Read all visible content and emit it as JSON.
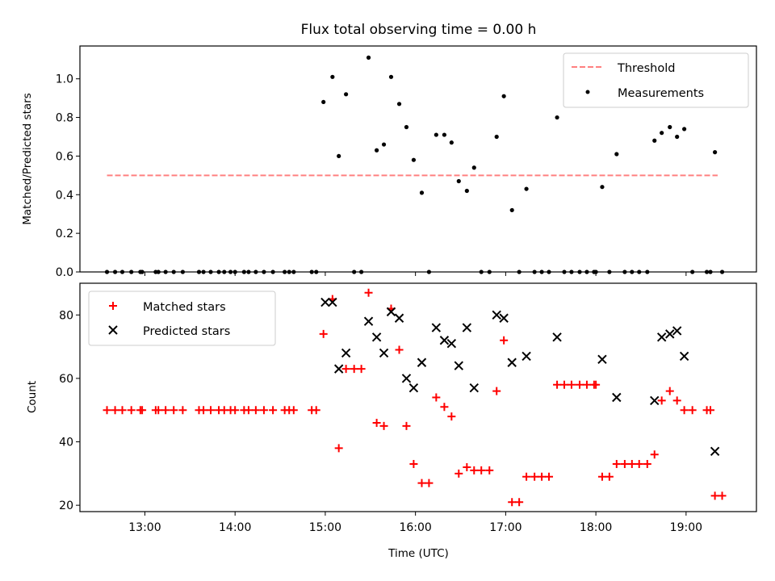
{
  "chart_data": [
    {
      "type": "scatter",
      "title": "Flux total observing time = 0.00 h",
      "xlabel": "",
      "ylabel": "Matched/Predicted stars",
      "ylim": [
        0,
        1.17
      ],
      "yticks": [
        0.0,
        0.2,
        0.4,
        0.6,
        0.8,
        1.0
      ],
      "ytick_labels": [
        "0.0",
        "0.2",
        "0.4",
        "0.6",
        "0.8",
        "1.0"
      ],
      "legend_position": "top-right",
      "threshold": {
        "name": "Threshold",
        "value": 0.5,
        "x_start": 12.58,
        "x_end": 19.35,
        "color": "#ff8080"
      },
      "series": [
        {
          "name": "Measurements",
          "color": "#000000",
          "marker": "dot",
          "x": [
            12.58,
            12.67,
            12.75,
            12.85,
            12.95,
            12.97,
            13.12,
            13.15,
            13.23,
            13.32,
            13.42,
            13.6,
            13.65,
            13.73,
            13.82,
            13.88,
            13.95,
            14.0,
            14.1,
            14.15,
            14.23,
            14.32,
            14.42,
            14.55,
            14.6,
            14.65,
            14.85,
            14.9,
            14.98,
            15.08,
            15.15,
            15.23,
            15.32,
            15.4,
            15.48,
            15.57,
            15.65,
            15.73,
            15.82,
            15.9,
            15.98,
            16.07,
            16.15,
            16.23,
            16.32,
            16.4,
            16.48,
            16.57,
            16.65,
            16.73,
            16.82,
            16.9,
            16.98,
            17.07,
            17.15,
            17.23,
            17.32,
            17.4,
            17.48,
            17.57,
            17.65,
            17.73,
            17.82,
            17.9,
            17.98,
            18.0,
            18.07,
            18.15,
            18.23,
            18.32,
            18.4,
            18.48,
            18.57,
            18.65,
            18.73,
            18.82,
            18.9,
            18.98,
            19.07,
            19.23,
            19.27,
            19.32,
            19.4
          ],
          "y": [
            0,
            0,
            0,
            0,
            0,
            0,
            0,
            0,
            0,
            0,
            0,
            0,
            0,
            0,
            0,
            0,
            0,
            0,
            0,
            0,
            0,
            0,
            0,
            0,
            0,
            0,
            0,
            0,
            0.88,
            1.01,
            0.6,
            0.92,
            0,
            0,
            1.11,
            0.63,
            0.66,
            1.01,
            0.87,
            0.75,
            0.58,
            0.41,
            0,
            0.71,
            0.71,
            0.67,
            0.47,
            0.42,
            0.54,
            0,
            0,
            0.7,
            0.91,
            0.32,
            0,
            0.43,
            0,
            0,
            0,
            0.8,
            0,
            0,
            0,
            0,
            0,
            0,
            0.44,
            0,
            0.61,
            0,
            0,
            0,
            0,
            0.68,
            0.72,
            0.75,
            0.7,
            0.74,
            0,
            0,
            0,
            0.62,
            0
          ]
        }
      ]
    },
    {
      "type": "scatter",
      "title": "",
      "xlabel": "Time (UTC)",
      "ylabel": "Count",
      "ylim": [
        18,
        90
      ],
      "xlim": [
        12.28,
        19.78
      ],
      "yticks": [
        20,
        40,
        60,
        80
      ],
      "ytick_labels": [
        "20",
        "40",
        "60",
        "80"
      ],
      "xticks": [
        13,
        14,
        15,
        16,
        17,
        18,
        19
      ],
      "xtick_labels": [
        "13:00",
        "14:00",
        "15:00",
        "16:00",
        "17:00",
        "18:00",
        "19:00"
      ],
      "legend_position": "top-left",
      "series": [
        {
          "name": "Matched stars",
          "color": "#ff0000",
          "marker": "plus",
          "x": [
            12.58,
            12.67,
            12.75,
            12.85,
            12.95,
            12.97,
            13.12,
            13.15,
            13.23,
            13.32,
            13.42,
            13.6,
            13.65,
            13.73,
            13.82,
            13.88,
            13.95,
            14.0,
            14.1,
            14.15,
            14.23,
            14.32,
            14.42,
            14.55,
            14.6,
            14.65,
            14.85,
            14.9,
            14.98,
            15.08,
            15.15,
            15.23,
            15.32,
            15.4,
            15.48,
            15.57,
            15.65,
            15.73,
            15.82,
            15.9,
            15.98,
            16.07,
            16.15,
            16.23,
            16.32,
            16.4,
            16.48,
            16.57,
            16.65,
            16.73,
            16.82,
            16.9,
            16.98,
            17.07,
            17.15,
            17.23,
            17.32,
            17.4,
            17.48,
            17.57,
            17.65,
            17.73,
            17.82,
            17.9,
            17.98,
            18.0,
            18.07,
            18.15,
            18.23,
            18.32,
            18.4,
            18.48,
            18.57,
            18.65,
            18.73,
            18.82,
            18.9,
            18.98,
            19.07,
            19.23,
            19.27,
            19.32,
            19.4
          ],
          "y": [
            50,
            50,
            50,
            50,
            50,
            50,
            50,
            50,
            50,
            50,
            50,
            50,
            50,
            50,
            50,
            50,
            50,
            50,
            50,
            50,
            50,
            50,
            50,
            50,
            50,
            50,
            50,
            50,
            74,
            85,
            38,
            63,
            63,
            63,
            87,
            46,
            45,
            82,
            69,
            45,
            33,
            27,
            27,
            54,
            51,
            48,
            30,
            32,
            31,
            31,
            31,
            56,
            72,
            21,
            21,
            29,
            29,
            29,
            29,
            58,
            58,
            58,
            58,
            58,
            58,
            58,
            29,
            29,
            33,
            33,
            33,
            33,
            33,
            36,
            53,
            56,
            53,
            50,
            50,
            50,
            50,
            23,
            23
          ]
        },
        {
          "name": "Predicted stars",
          "color": "#000000",
          "marker": "x",
          "x": [
            15.0,
            15.08,
            15.15,
            15.23,
            15.48,
            15.57,
            15.65,
            15.73,
            15.82,
            15.9,
            15.98,
            16.07,
            16.23,
            16.32,
            16.4,
            16.48,
            16.57,
            16.65,
            16.9,
            16.98,
            17.07,
            17.23,
            17.57,
            18.07,
            18.23,
            18.65,
            18.73,
            18.82,
            18.9,
            18.98,
            19.32
          ],
          "y": [
            84,
            84,
            63,
            68,
            78,
            73,
            68,
            81,
            79,
            60,
            57,
            65,
            76,
            72,
            71,
            64,
            76,
            57,
            80,
            79,
            65,
            67,
            73,
            66,
            54,
            53,
            73,
            74,
            75,
            67,
            37
          ]
        }
      ]
    }
  ]
}
